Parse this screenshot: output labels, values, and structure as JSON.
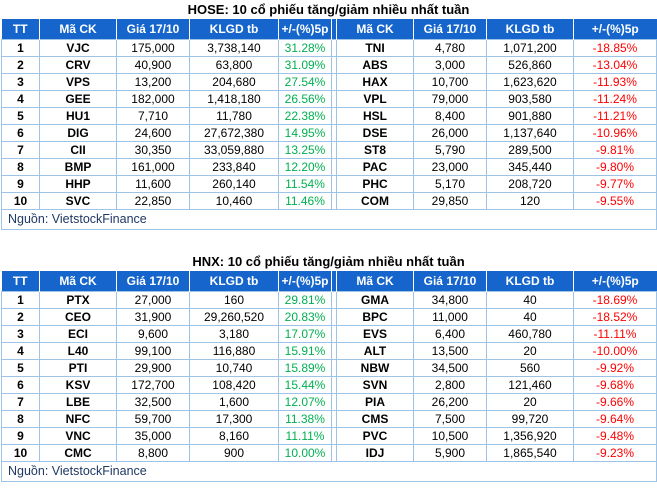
{
  "colors": {
    "header_bg": "#1565CC",
    "grid": "#9DC3E6",
    "positive": "#00B050",
    "negative": "#FF0000",
    "source_text": "#1F3864",
    "title_text": "#000000"
  },
  "chart_data": [
    {
      "type": "table",
      "title": "HOSE: 10 cổ phiếu tăng/giảm nhiều nhất tuần",
      "columns": [
        "TT",
        "Mã CK",
        "Giá 17/10",
        "KLGD tb",
        "+/-(%)5p",
        "Mã CK",
        "Giá 17/10",
        "KLGD tb",
        "+/-(%)5p"
      ],
      "rows": [
        [
          "1",
          "VJC",
          "175,000",
          "3,738,140",
          "31.28%",
          "TNI",
          "4,780",
          "1,071,200",
          "-18.85%"
        ],
        [
          "2",
          "CRV",
          "40,900",
          "63,800",
          "31.09%",
          "ABS",
          "3,000",
          "526,860",
          "-13.04%"
        ],
        [
          "3",
          "VPS",
          "13,200",
          "204,680",
          "27.54%",
          "HAX",
          "10,700",
          "1,623,620",
          "-11.93%"
        ],
        [
          "4",
          "GEE",
          "182,000",
          "1,418,180",
          "26.56%",
          "VPL",
          "79,000",
          "903,580",
          "-11.24%"
        ],
        [
          "5",
          "HU1",
          "7,710",
          "11,780",
          "22.38%",
          "HSL",
          "8,400",
          "901,880",
          "-11.21%"
        ],
        [
          "6",
          "DIG",
          "24,600",
          "27,672,380",
          "14.95%",
          "DSE",
          "26,000",
          "1,137,640",
          "-10.96%"
        ],
        [
          "7",
          "CII",
          "30,350",
          "33,059,880",
          "13.25%",
          "ST8",
          "5,790",
          "289,500",
          "-9.81%"
        ],
        [
          "8",
          "BMP",
          "161,000",
          "233,840",
          "12.20%",
          "PAC",
          "23,000",
          "345,440",
          "-9.80%"
        ],
        [
          "9",
          "HHP",
          "11,600",
          "260,140",
          "11.54%",
          "PHC",
          "5,170",
          "208,720",
          "-9.77%"
        ],
        [
          "10",
          "SVC",
          "22,850",
          "10,460",
          "11.46%",
          "COM",
          "29,850",
          "120",
          "-9.55%"
        ]
      ],
      "source": "Nguồn: VietstockFinance"
    },
    {
      "type": "table",
      "title": "HNX: 10 cổ phiếu tăng/giảm nhiều nhất tuần",
      "columns": [
        "TT",
        "Mã CK",
        "Giá 17/10",
        "KLGD tb",
        "+/-(%)5p",
        "Mã CK",
        "Giá 17/10",
        "KLGD tb",
        "+/-(%)5p"
      ],
      "rows": [
        [
          "1",
          "PTX",
          "27,000",
          "160",
          "29.81%",
          "GMA",
          "34,800",
          "40",
          "-18.69%"
        ],
        [
          "2",
          "CEO",
          "31,900",
          "29,260,520",
          "20.83%",
          "BPC",
          "11,000",
          "40",
          "-18.52%"
        ],
        [
          "3",
          "ECI",
          "9,600",
          "3,180",
          "17.07%",
          "EVS",
          "6,400",
          "460,780",
          "-11.11%"
        ],
        [
          "4",
          "L40",
          "99,100",
          "116,880",
          "15.91%",
          "ALT",
          "13,500",
          "20",
          "-10.00%"
        ],
        [
          "5",
          "PTI",
          "29,900",
          "10,740",
          "15.89%",
          "NBW",
          "34,500",
          "560",
          "-9.92%"
        ],
        [
          "6",
          "KSV",
          "172,700",
          "108,420",
          "15.44%",
          "SVN",
          "2,800",
          "121,460",
          "-9.68%"
        ],
        [
          "7",
          "LBE",
          "32,500",
          "1,600",
          "12.07%",
          "PIA",
          "26,200",
          "20",
          "-9.66%"
        ],
        [
          "8",
          "NFC",
          "59,700",
          "17,300",
          "11.38%",
          "CMS",
          "7,500",
          "99,720",
          "-9.64%"
        ],
        [
          "9",
          "VNC",
          "35,000",
          "8,160",
          "11.11%",
          "PVC",
          "10,500",
          "1,356,920",
          "-9.48%"
        ],
        [
          "10",
          "CMC",
          "8,800",
          "900",
          "10.00%",
          "IDJ",
          "5,900",
          "1,865,540",
          "-9.23%"
        ]
      ],
      "source": "Nguồn: VietstockFinance"
    }
  ]
}
